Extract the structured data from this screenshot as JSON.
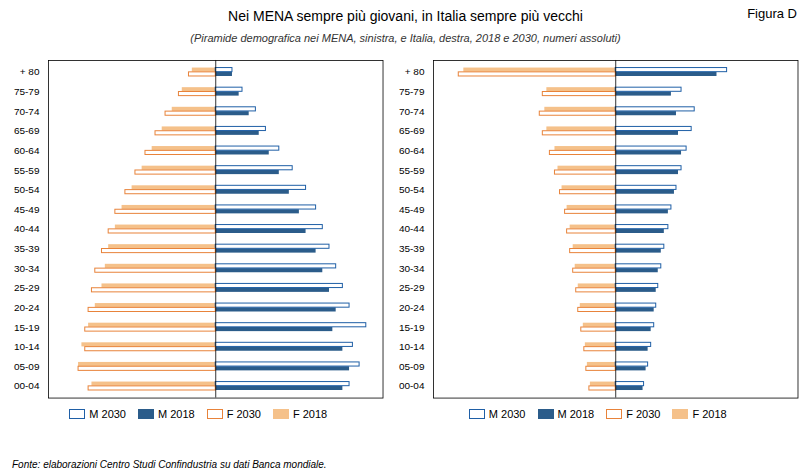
{
  "chart_data": [
    {
      "type": "bar",
      "orientation": "horizontal",
      "title": "Nei MENA sempre più giovani, in Italia sempre più vecchi",
      "subtitle": "(Piramide demografica nei MENA, sinistra, e Italia, destra, 2018 e 2030, numeri assoluti)",
      "annotations": [
        "Figura D",
        "Fonte: elaborazioni Centro Studi Confindustria su dati Banca mondiale."
      ],
      "categories": [
        "00-04",
        "05-09",
        "10-14",
        "15-19",
        "20-24",
        "25-29",
        "30-34",
        "35-39",
        "40-44",
        "45-49",
        "50-54",
        "55-59",
        "60-64",
        "65-69",
        "70-74",
        "75-79",
        "+ 80"
      ],
      "series": [
        {
          "name": "M 2030",
          "color": "#1F5FA6",
          "values": [
            20.0,
            21.5,
            20.5,
            22.5,
            20.0,
            19.0,
            18.0,
            17.0,
            16.0,
            15.0,
            13.5,
            11.5,
            9.5,
            7.5,
            6.0,
            4.0,
            2.5
          ]
        },
        {
          "name": "M 2018",
          "color": "#2B5C8A",
          "values": [
            19.0,
            20.0,
            19.0,
            17.5,
            18.0,
            17.0,
            16.0,
            15.0,
            13.5,
            12.5,
            11.0,
            9.5,
            8.0,
            6.5,
            5.0,
            3.5,
            2.5
          ]
        },
        {
          "name": "F 2030",
          "color": "#E8833A",
          "values": [
            19.0,
            20.5,
            19.5,
            19.5,
            19.0,
            18.5,
            18.0,
            17.0,
            16.0,
            15.0,
            13.5,
            12.0,
            10.5,
            9.0,
            7.5,
            5.5,
            4.0
          ]
        },
        {
          "name": "F 2018",
          "color": "#F5C18A",
          "values": [
            18.5,
            20.5,
            20.0,
            19.0,
            18.0,
            17.0,
            16.5,
            16.0,
            15.0,
            14.0,
            12.5,
            11.0,
            9.5,
            8.0,
            6.5,
            5.0,
            3.5
          ]
        }
      ],
      "xlim": [
        -25,
        25
      ],
      "tick_labels": "y",
      "legend": "bottom",
      "grid": false
    },
    {
      "type": "bar",
      "orientation": "horizontal",
      "categories": [
        "00-04",
        "05-09",
        "10-14",
        "15-19",
        "20-24",
        "25-29",
        "30-34",
        "35-39",
        "40-44",
        "45-49",
        "50-54",
        "55-59",
        "60-64",
        "65-69",
        "70-74",
        "75-79",
        "+ 80"
      ],
      "series": [
        {
          "name": "M 2030",
          "color": "#1F5FA6",
          "values": [
            2.8,
            3.2,
            3.5,
            3.8,
            4.0,
            4.2,
            4.5,
            4.8,
            5.2,
            5.5,
            6.0,
            6.5,
            7.0,
            7.5,
            7.8,
            6.5,
            11.0
          ]
        },
        {
          "name": "M 2018",
          "color": "#2B5C8A",
          "values": [
            2.7,
            3.0,
            3.2,
            3.5,
            3.8,
            4.0,
            4.2,
            4.5,
            4.8,
            5.2,
            5.8,
            6.2,
            6.5,
            6.2,
            6.0,
            5.5,
            10.0
          ]
        },
        {
          "name": "F 2030",
          "color": "#E8833A",
          "values": [
            2.6,
            2.9,
            3.1,
            3.4,
            3.7,
            3.9,
            4.2,
            4.5,
            4.8,
            5.0,
            5.5,
            6.0,
            6.5,
            7.2,
            7.5,
            7.2,
            15.5
          ]
        },
        {
          "name": "F 2018",
          "color": "#F5C18A",
          "values": [
            2.5,
            2.8,
            3.0,
            3.2,
            3.5,
            3.7,
            4.0,
            4.2,
            4.5,
            4.8,
            5.3,
            5.7,
            6.0,
            6.8,
            7.0,
            6.8,
            15.0
          ]
        }
      ],
      "xlim": [
        -18,
        18
      ],
      "tick_labels": "y",
      "legend": "bottom",
      "grid": false
    }
  ]
}
